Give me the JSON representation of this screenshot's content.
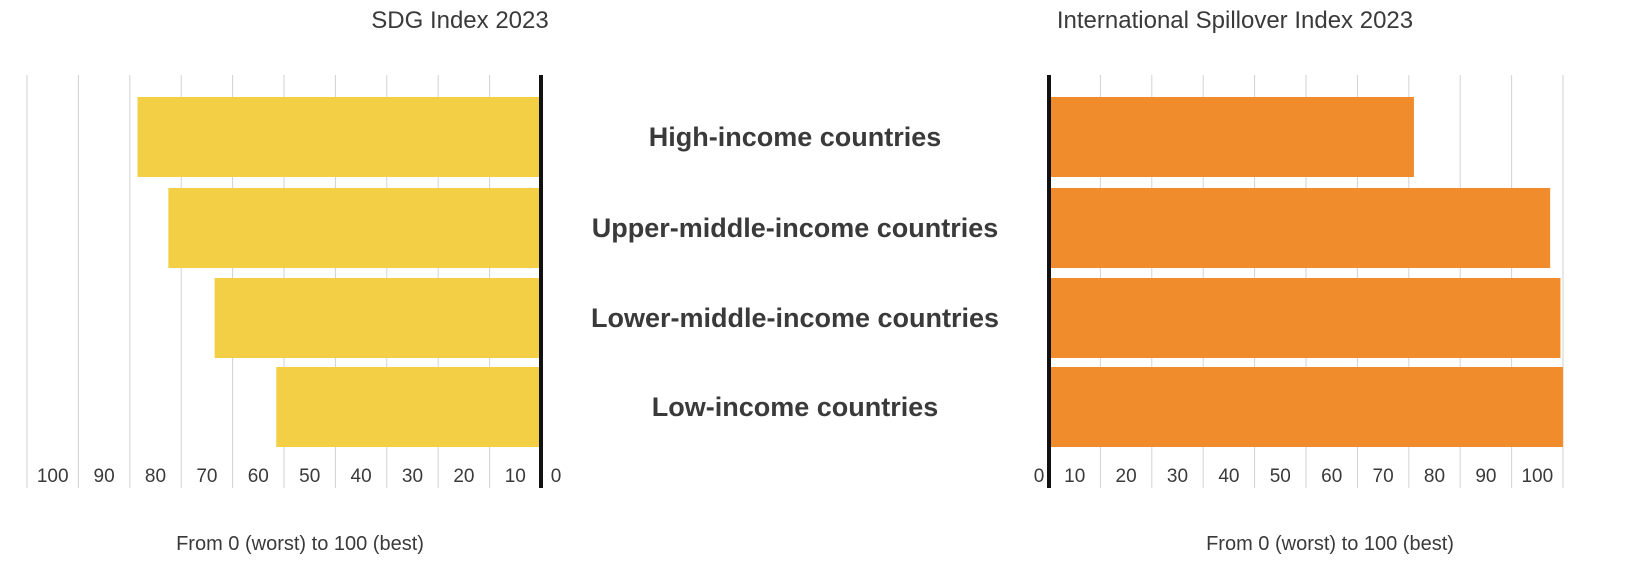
{
  "chart_data": [
    {
      "type": "bar",
      "orientation": "horizontal",
      "direction": "reversed",
      "title": "SDG Index 2023",
      "xlabel": "From 0 (worst) to 100 (best)",
      "categories": [
        "High-income countries",
        "Upper-middle-income countries",
        "Lower-middle-income countries",
        "Low-income countries"
      ],
      "values": [
        78.5,
        72.5,
        63.5,
        51.5
      ],
      "xlim": [
        0,
        100
      ],
      "ticks": [
        "10",
        "20",
        "30",
        "40",
        "50",
        "60",
        "70",
        "80",
        "90",
        "100"
      ],
      "zero_label": "0",
      "color": "#f2cf45",
      "grid": true
    },
    {
      "type": "bar",
      "orientation": "horizontal",
      "title": "International Spillover Index 2023",
      "xlabel": "From 0 (worst) to 100 (best)",
      "categories": [
        "High-income countries",
        "Upper-middle-income countries",
        "Lower-middle-income countries",
        "Low-income countries"
      ],
      "values": [
        71,
        97.5,
        99.5,
        100
      ],
      "xlim": [
        0,
        100
      ],
      "ticks": [
        "10",
        "20",
        "30",
        "40",
        "50",
        "60",
        "70",
        "80",
        "90",
        "100"
      ],
      "zero_label": "0",
      "color": "#f08c2c",
      "grid": true
    }
  ],
  "categories": [
    "High-income countries",
    "Upper-middle-income countries",
    "Lower-middle-income countries",
    "Low-income countries"
  ]
}
